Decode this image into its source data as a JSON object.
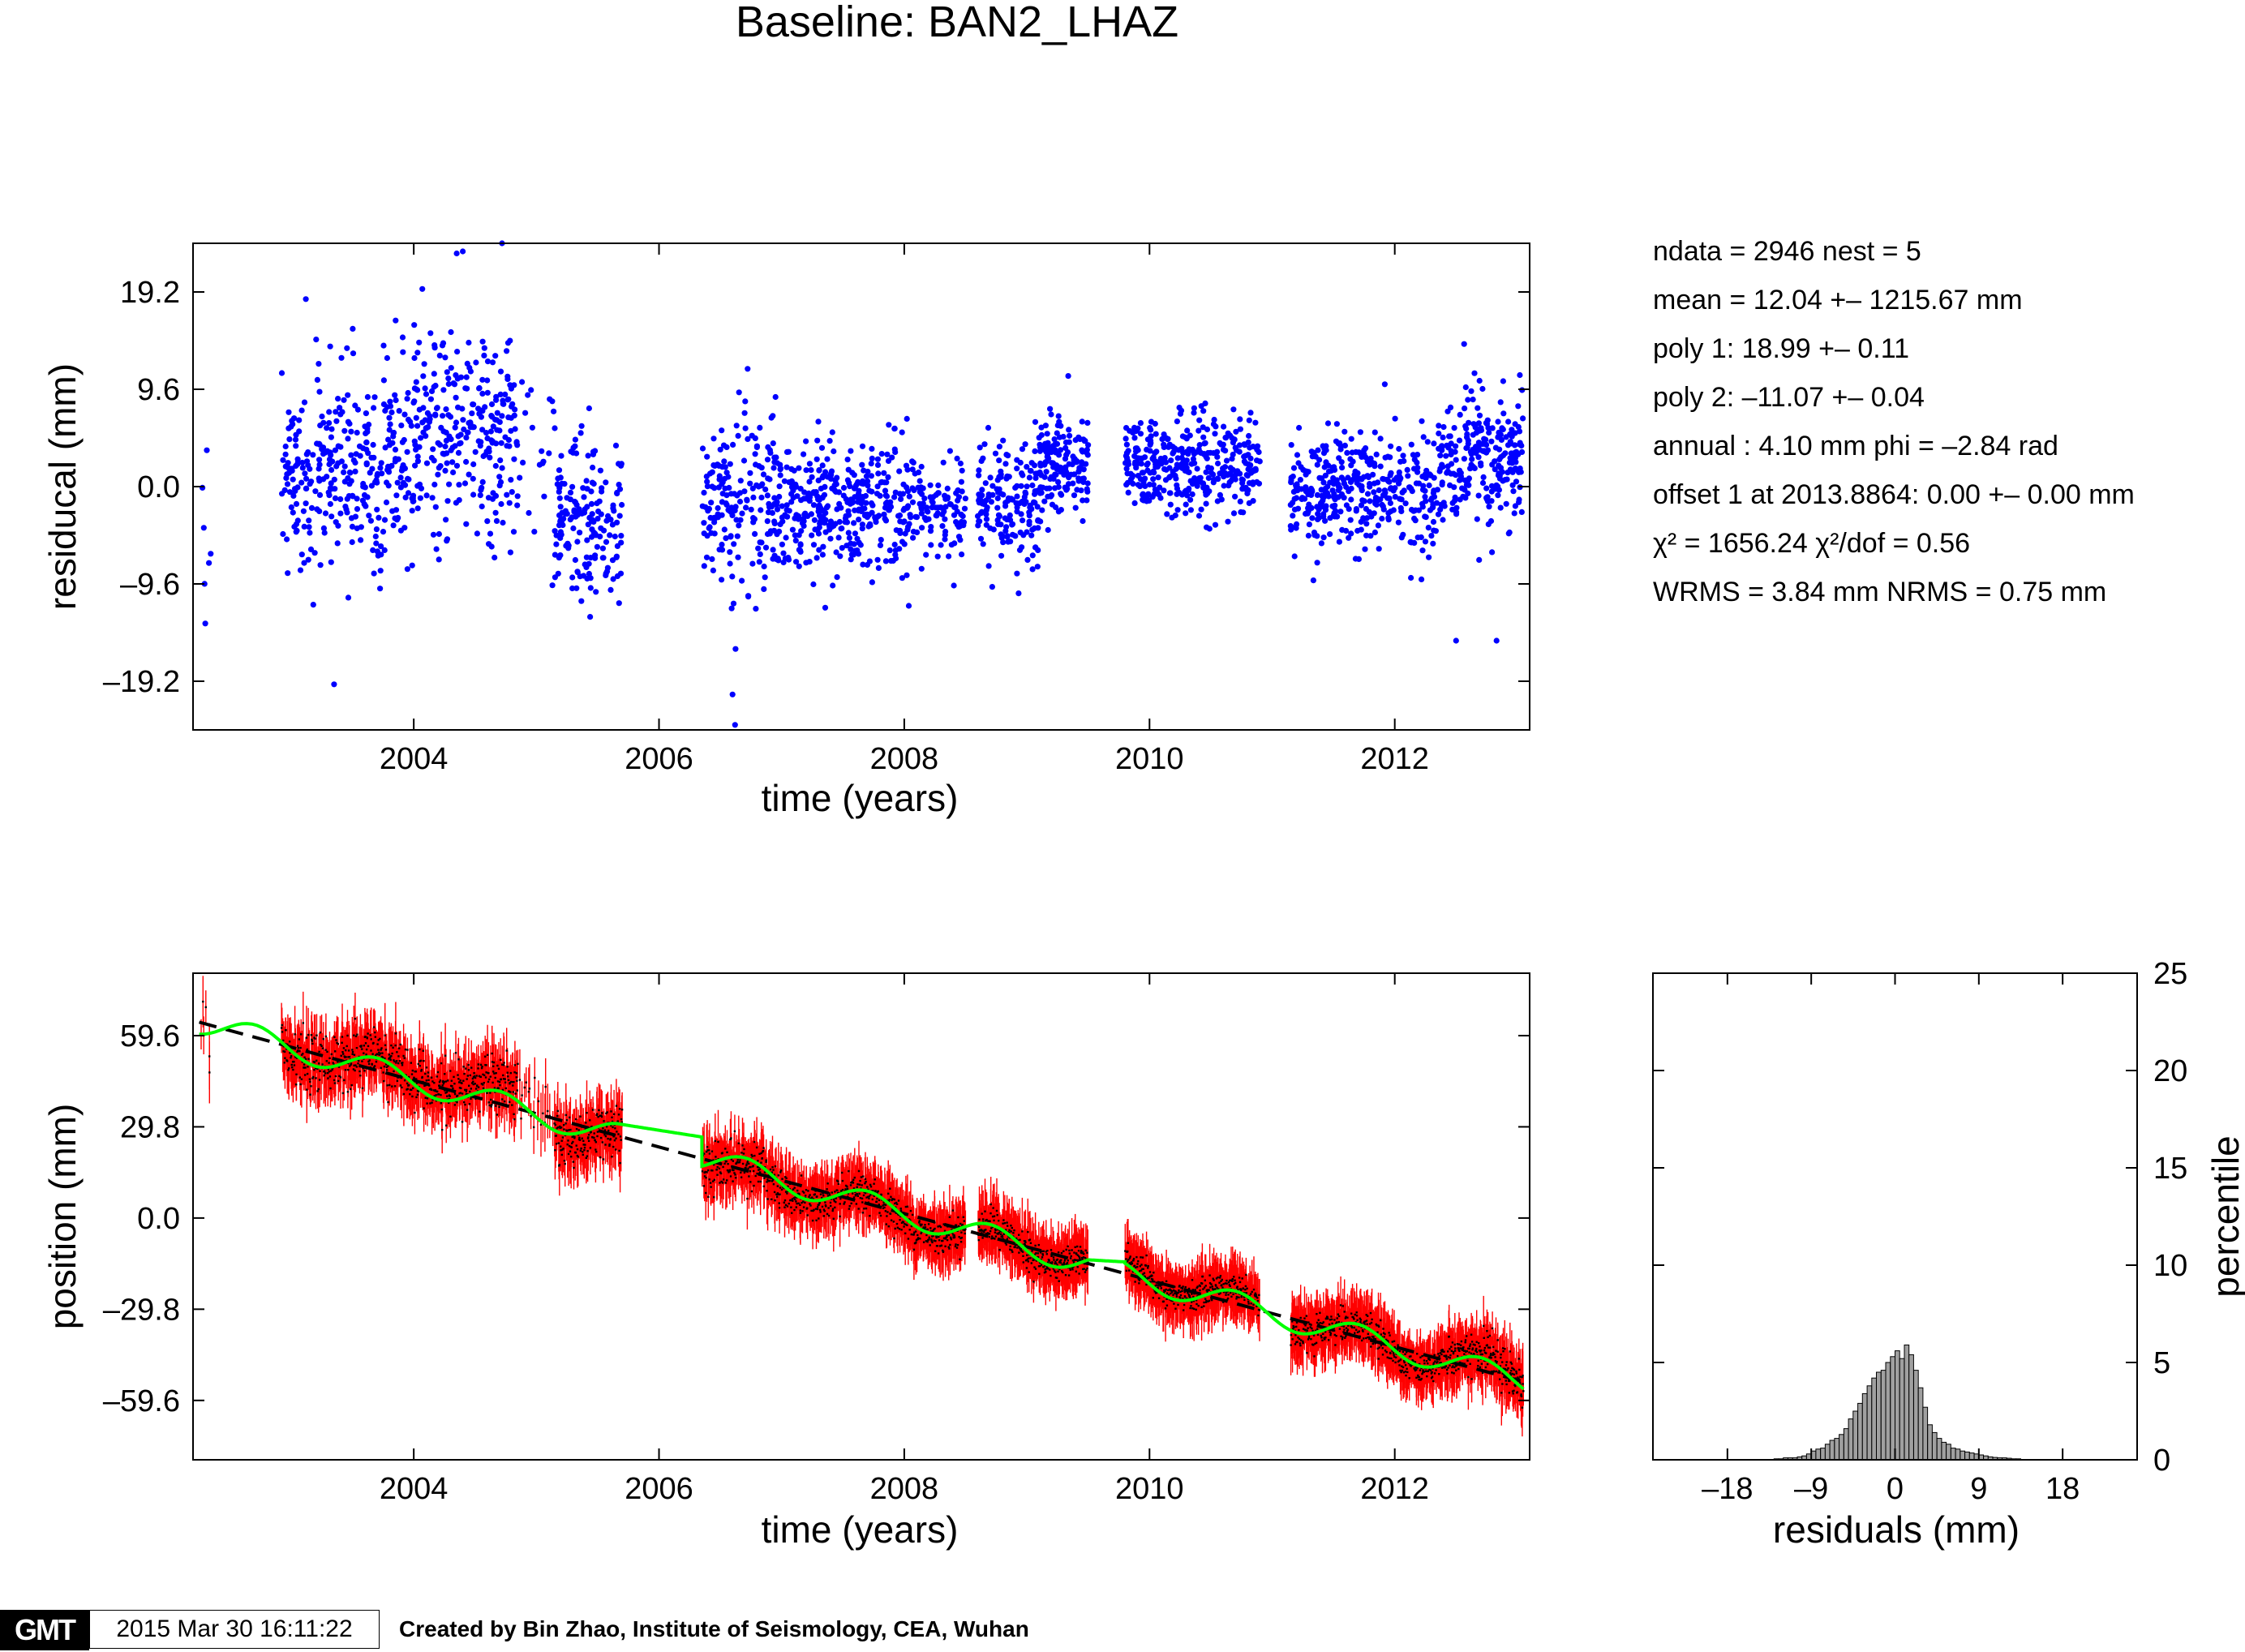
{
  "title": "Baseline: BAN2_LHAZ",
  "stats": [
    "ndata = 2946  nest = 5",
    "mean = 12.04 +– 1215.67 mm",
    "poly 1: 18.99 +– 0.11",
    "poly 2: –11.07 +– 0.04",
    "annual : 4.10 mm  phi = –2.84 rad",
    "offset 1 at 2013.8864: 0.00 +– 0.00 mm",
    "χ² = 1656.24  χ²/dof = 0.56",
    "WRMS = 3.84 mm  NRMS = 0.75 mm"
  ],
  "footer": {
    "logo": "GMT",
    "timestamp": "2015 Mar 30 16:11:22",
    "credit": "Created by Bin Zhao, Institute of Seismology, CEA, Wuhan"
  },
  "colors": {
    "residual_points": "#0000ff",
    "position_points": "#ff0000",
    "error_bars": "#000000",
    "model_fit": "#00ff00",
    "trend_line": "#000000",
    "histogram_bars": "#a0a0a0"
  },
  "chart_data": [
    {
      "id": "residuals",
      "type": "scatter",
      "xlabel": "time (years)",
      "ylabel": "residucal (mm)",
      "xlim": [
        2002.2,
        2013.1
      ],
      "ylim": [
        -24,
        24
      ],
      "xticks": [
        "2004",
        "2006",
        "2008",
        "2010",
        "2012"
      ],
      "xtick_values": [
        2004,
        2006,
        2008,
        2010,
        2012
      ],
      "yticks": [
        "–19.2",
        "–9.6",
        "0.0",
        "9.6",
        "19.2"
      ],
      "ytick_values": [
        -19.2,
        -9.6,
        0.0,
        9.6,
        19.2
      ],
      "data_segments": [
        {
          "start": 2002.25,
          "end": 2002.35,
          "mean": 1.0,
          "sd": 7.0,
          "n": 6
        },
        {
          "start": 2002.92,
          "end": 2004.0,
          "mean": 1.5,
          "sd": 5.0,
          "n": 330
        },
        {
          "start": 2004.0,
          "end": 2004.85,
          "mean": 6.0,
          "sd": 5.0,
          "n": 270
        },
        {
          "start": 2004.85,
          "end": 2005.15,
          "mean": 3.0,
          "sd": 5.5,
          "n": 20
        },
        {
          "start": 2005.15,
          "end": 2005.7,
          "mean": -3.5,
          "sd": 4.5,
          "n": 170
        },
        {
          "start": 2006.35,
          "end": 2007.0,
          "mean": -2.5,
          "sd": 4.5,
          "n": 200
        },
        {
          "start": 2007.0,
          "end": 2008.5,
          "mean": -1.8,
          "sd": 3.0,
          "n": 470
        },
        {
          "start": 2008.6,
          "end": 2009.1,
          "mean": -1.5,
          "sd": 3.0,
          "n": 170
        },
        {
          "start": 2009.1,
          "end": 2009.5,
          "mean": 2.0,
          "sd": 2.5,
          "n": 150
        },
        {
          "start": 2009.8,
          "end": 2010.9,
          "mean": 2.0,
          "sd": 2.5,
          "n": 370
        },
        {
          "start": 2011.15,
          "end": 2012.35,
          "mean": -0.5,
          "sd": 2.8,
          "n": 380
        },
        {
          "start": 2012.35,
          "end": 2013.05,
          "mean": 2.5,
          "sd": 3.5,
          "n": 250
        }
      ],
      "outliers": [
        {
          "x": 2002.3,
          "y": -13.5
        },
        {
          "x": 2003.35,
          "y": -19.5
        },
        {
          "x": 2004.35,
          "y": 23.0
        },
        {
          "x": 2004.4,
          "y": 23.2
        },
        {
          "x": 2004.72,
          "y": 24.0
        },
        {
          "x": 2003.12,
          "y": 18.5
        },
        {
          "x": 2006.6,
          "y": -20.5
        },
        {
          "x": 2006.62,
          "y": -23.5
        },
        {
          "x": 2012.5,
          "y": -15.2
        },
        {
          "x": 2012.83,
          "y": -15.2
        },
        {
          "x": 2004.07,
          "y": 19.5
        },
        {
          "x": 2013.02,
          "y": 11.0
        }
      ]
    },
    {
      "id": "positions",
      "type": "scatter",
      "xlabel": "time (years)",
      "ylabel": "position (mm)",
      "xlim": [
        2002.2,
        2013.1
      ],
      "ylim": [
        -79,
        80
      ],
      "xticks": [
        "2004",
        "2006",
        "2008",
        "2010",
        "2012"
      ],
      "xtick_values": [
        2004,
        2006,
        2008,
        2010,
        2012
      ],
      "yticks": [
        "–59.6",
        "–29.8",
        "0.0",
        "29.8",
        "59.6"
      ],
      "ytick_values": [
        -59.6,
        -29.8,
        0.0,
        29.8,
        59.6
      ],
      "trend": {
        "x": [
          2002.25,
          2013.05
        ],
        "y": [
          64.0,
          -53.5
        ]
      },
      "model": {
        "annual_amplitude_mm": 4.1,
        "phase_rad": -2.84
      },
      "model_segments": [
        [
          2002.25,
          2005.7
        ],
        [
          2005.7,
          2006.35
        ],
        [
          2006.35,
          2009.5
        ],
        [
          2009.5,
          2009.8
        ],
        [
          2009.8,
          2013.05
        ]
      ]
    },
    {
      "id": "histogram",
      "type": "bar",
      "xlabel": "residuals (mm)",
      "ylabel": "percentile",
      "xlim": [
        -26,
        26
      ],
      "ylim": [
        0,
        25
      ],
      "xticks": [
        "–18",
        "–9",
        "0",
        "9",
        "18"
      ],
      "xtick_values": [
        -18,
        -9,
        0,
        9,
        18
      ],
      "yticks": [
        "0",
        "5",
        "10",
        "15",
        "20",
        "25"
      ],
      "ytick_values": [
        0,
        5,
        10,
        15,
        20,
        25
      ],
      "bin_width": 0.5,
      "bin_starts": [
        -13.0,
        -12.5,
        -12.0,
        -11.5,
        -11.0,
        -10.5,
        -10.0,
        -9.5,
        -9.0,
        -8.5,
        -8.0,
        -7.5,
        -7.0,
        -6.5,
        -6.0,
        -5.5,
        -5.0,
        -4.5,
        -4.0,
        -3.5,
        -3.0,
        -2.5,
        -2.0,
        -1.5,
        -1.0,
        -0.5,
        0.0,
        0.5,
        1.0,
        1.5,
        2.0,
        2.5,
        3.0,
        3.5,
        4.0,
        4.5,
        5.0,
        5.5,
        6.0,
        6.5,
        7.0,
        7.5,
        8.0,
        8.5,
        9.0,
        9.5,
        10.0,
        10.5,
        11.0,
        11.5,
        12.0,
        12.5,
        13.0
      ],
      "values": [
        0.05,
        0.05,
        0.1,
        0.1,
        0.1,
        0.15,
        0.2,
        0.3,
        0.45,
        0.55,
        0.6,
        0.8,
        1.0,
        1.1,
        1.3,
        1.6,
        2.1,
        2.5,
        2.9,
        3.4,
        3.8,
        4.2,
        4.5,
        4.6,
        5.0,
        5.3,
        5.6,
        5.2,
        5.9,
        5.4,
        4.6,
        3.7,
        2.7,
        1.8,
        1.4,
        1.1,
        0.9,
        0.8,
        0.6,
        0.55,
        0.45,
        0.4,
        0.35,
        0.3,
        0.25,
        0.2,
        0.15,
        0.12,
        0.1,
        0.1,
        0.08,
        0.05,
        0.05
      ]
    }
  ]
}
